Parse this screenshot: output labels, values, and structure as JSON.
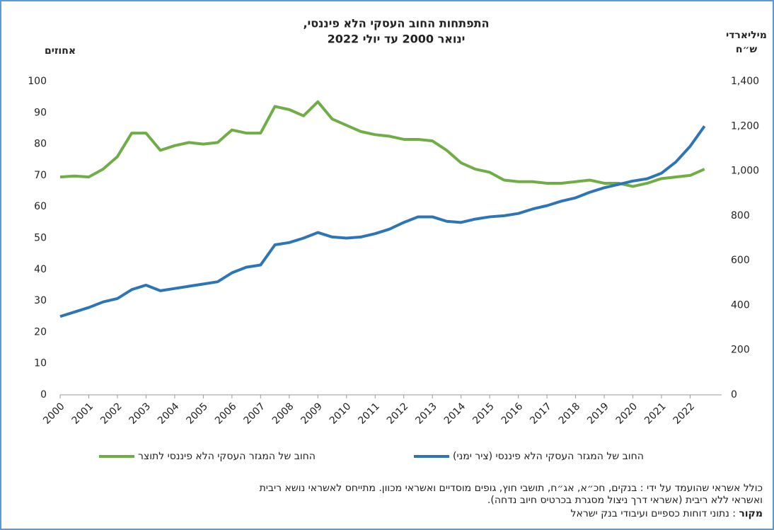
{
  "chart_data": {
    "type": "line",
    "title": [
      "התפתחות החוב העסקי הלא פיננסי,",
      "ינואר 2000 עד יולי 2022"
    ],
    "y_label": "אחוזים",
    "y2_label": [
      "מיליארדי",
      "ש״ח"
    ],
    "x": [
      2000,
      2000.5,
      2001,
      2001.5,
      2002,
      2002.5,
      2003,
      2003.5,
      2004,
      2004.5,
      2005,
      2005.5,
      2006,
      2006.5,
      2007,
      2007.5,
      2008,
      2008.5,
      2009,
      2009.5,
      2010,
      2010.5,
      2011,
      2011.5,
      2012,
      2012.5,
      2013,
      2013.5,
      2014,
      2014.5,
      2015,
      2015.5,
      2016,
      2016.5,
      2017,
      2017.5,
      2018,
      2018.5,
      2019,
      2019.5,
      2020,
      2020.5,
      2021,
      2021.5,
      2022,
      2022.5
    ],
    "series": [
      {
        "name": "החוב של המגזר העסקי הלא פיננסי לתוצר",
        "color": "#70ad47",
        "values": [
          69.5,
          69.8,
          69.5,
          72,
          76,
          83.5,
          83.5,
          78,
          79.5,
          80.5,
          80,
          80.5,
          84.5,
          83.5,
          83.5,
          92,
          91,
          89,
          93.5,
          88,
          86,
          84,
          83,
          82.5,
          81.5,
          81.5,
          81,
          78,
          74,
          72,
          71,
          68.5,
          68,
          68,
          67.5,
          67.5,
          68,
          68.5,
          67.5,
          67.5,
          66.5,
          67.5,
          69,
          69.5,
          70,
          72
        ]
      },
      {
        "name": "החוב של המגזר העסקי הלא פיננסי  (ציר ימני)",
        "color": "#2e75b6",
        "axis": "y2",
        "values": [
          350,
          370,
          390,
          415,
          430,
          470,
          490,
          465,
          475,
          485,
          495,
          505,
          545,
          570,
          580,
          670,
          680,
          700,
          725,
          705,
          700,
          705,
          720,
          740,
          770,
          795,
          795,
          775,
          770,
          785,
          795,
          800,
          810,
          830,
          845,
          865,
          880,
          905,
          925,
          940,
          955,
          965,
          990,
          1040,
          1110,
          1200
        ]
      }
    ],
    "xlim": [
      2000,
      2023.1
    ],
    "xticks": [
      2000,
      2001,
      2002,
      2003,
      2004,
      2005,
      2006,
      2007,
      2008,
      2009,
      2010,
      2011,
      2012,
      2013,
      2014,
      2015,
      2016,
      2017,
      2018,
      2019,
      2020,
      2021,
      2022
    ],
    "ylim": [
      0,
      100
    ],
    "yticks": [
      0,
      10,
      20,
      30,
      40,
      50,
      60,
      70,
      80,
      90,
      100
    ],
    "y2lim": [
      0,
      1400
    ],
    "y2ticks": [
      0,
      200,
      400,
      600,
      800,
      {
        "value": 1000,
        "label": "1,000"
      },
      {
        "value": 1200,
        "label": "1,200"
      },
      {
        "value": 1400,
        "label": "1,400"
      }
    ],
    "notes": [
      "כולל אשראי שהועמד על ידי : בנקים, חכ״א, אג״ח, תושבי חוץ, גופים מוסדיים ואשראי מכוון. מתייחס לאשראי נושא ריבית",
      "ואשראי ללא ריבית (אשראי דרך ניצול מסגרת בכרטיס חיוב נדחה)."
    ],
    "source_label": "מקור",
    "source": ": נתוני דוחות כספיים ועיבודי בנק ישראל"
  }
}
